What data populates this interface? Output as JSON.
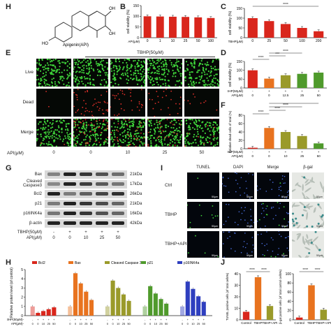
{
  "panels": {
    "H_top": "H",
    "B": "B",
    "C": "C",
    "E": "E",
    "D": "D",
    "F": "F",
    "G": "G",
    "I": "I",
    "H": "H",
    "J": "J"
  },
  "panel_a": {
    "compound": "Apigenin(API)",
    "oh": "OH",
    "ho": "HO"
  },
  "tbhp_label": "TBHP(50μM)",
  "panel_e": {
    "rows": [
      "Live",
      "Dead",
      "Merge"
    ],
    "api_label": "API(μM)",
    "api_doses": [
      "0",
      "0",
      "10",
      "25",
      "50"
    ]
  },
  "panel_g": {
    "proteins": [
      "Bax",
      "Cleaved\nCaspase3",
      "Bcl2",
      "p21",
      "p16INK4a",
      "β-actin"
    ],
    "kda": [
      "21kDa",
      "17kDa",
      "26kDa",
      "21kDa",
      "16kDa",
      "42kDa"
    ],
    "tbhp_row": "TBHP(50μM)",
    "api_row": "API(μM)",
    "tbhp_vals": [
      "-",
      "+",
      "+",
      "+",
      "+"
    ],
    "api_vals": [
      "0",
      "0",
      "10",
      "25",
      "50"
    ]
  },
  "panel_i": {
    "cols": [
      "TUNEL",
      "DAPI",
      "Merge",
      "β-gal"
    ],
    "rows": [
      "Ctrl",
      "TBHP",
      "TBHP+API"
    ],
    "scale": "50μm"
  },
  "colors": {
    "red": "#d9261c",
    "orange": "#e8731f",
    "green": "#4f9a2c",
    "olive": "#9a9a2a",
    "blue": "#2f3fbf",
    "grey": "#5a5a5a",
    "sig": "#2a7db8"
  },
  "chart_data": [
    {
      "id": "B",
      "type": "bar",
      "categories": [
        "0",
        "1",
        "10",
        "25",
        "50",
        "100"
      ],
      "values": [
        100,
        99,
        98,
        97,
        95,
        92
      ],
      "xlabel": "API(μM)",
      "ylabel": "cell viability (%)",
      "ylim": [
        0,
        150
      ],
      "yticks": [
        "0",
        "50",
        "100",
        "150"
      ]
    },
    {
      "id": "C",
      "type": "bar",
      "categories": [
        "0",
        "25",
        "50",
        "100",
        "200"
      ],
      "values": [
        100,
        85,
        70,
        50,
        33
      ],
      "xlabel": "TBHP(μM)",
      "ylabel": "cell viability (%)",
      "ylim": [
        0,
        150
      ],
      "yticks": [
        "0",
        "50",
        "100",
        "150"
      ],
      "sig": "****"
    },
    {
      "id": "D",
      "type": "bar",
      "categories": [
        "0",
        "0",
        "12.5",
        "25",
        "50"
      ],
      "values": [
        100,
        53,
        72,
        80,
        87
      ],
      "xlabel": "TBHP(50μM)",
      "ylabel": "cell viability (%)",
      "ylim": [
        0,
        150
      ],
      "yticks": [
        "0",
        "50",
        "100",
        "150"
      ],
      "tbhp": [
        "-",
        "+",
        "+",
        "+",
        "+"
      ],
      "api": [
        "0",
        "0",
        "12.5",
        "25",
        "50"
      ],
      "sig": [
        "****",
        "***",
        "****",
        "****"
      ]
    },
    {
      "id": "F",
      "type": "bar",
      "categories": [
        "0",
        "0",
        "10",
        "25",
        "50"
      ],
      "values": [
        3,
        62,
        50,
        38,
        16
      ],
      "xlabel": "TBHP(50μM)",
      "ylabel": "Relative dead cells of total (%)",
      "ylim": [
        0,
        100
      ],
      "yticks": [
        "0",
        "20",
        "40",
        "60",
        "80"
      ],
      "tbhp": [
        "-",
        "+",
        "+",
        "+",
        "+"
      ],
      "api": [
        "0",
        "0",
        "10",
        "25",
        "50"
      ],
      "sig": [
        "****",
        "****",
        "****",
        "****"
      ]
    },
    {
      "id": "H",
      "type": "bar",
      "ylabel": "Relative protein level (of control)",
      "ylim": [
        0,
        5
      ],
      "yticks": [
        "0",
        "1",
        "2",
        "3",
        "4",
        "5"
      ],
      "series": [
        {
          "name": "Bcl2",
          "values": [
            1.0,
            0.3,
            0.5,
            0.7,
            0.9
          ]
        },
        {
          "name": "Bax",
          "values": [
            1.0,
            4.6,
            3.5,
            2.6,
            1.7
          ]
        },
        {
          "name": "Cleaved Caspase 3",
          "values": [
            1.0,
            3.8,
            3.0,
            2.3,
            1.6
          ]
        },
        {
          "name": "p21",
          "values": [
            1.0,
            3.2,
            2.4,
            1.8,
            1.3
          ]
        },
        {
          "name": "p16INK4a",
          "values": [
            1.0,
            3.7,
            2.9,
            2.1,
            1.5
          ]
        }
      ],
      "tbhp_row": "TBHP(50μM)-",
      "api_row": "API(μM)-",
      "tbhp": [
        "-",
        "+",
        "+",
        "+",
        "+"
      ],
      "api": [
        "0",
        "0",
        "10",
        "25",
        "50"
      ]
    },
    {
      "id": "J1",
      "type": "bar",
      "categories": [
        "Control",
        "TBHP",
        "TBHP+API"
      ],
      "values": [
        7,
        37,
        12
      ],
      "ylabel": "TUNEL positive cells (of total cells%)",
      "ylim": [
        0,
        40
      ],
      "yticks": [
        "0",
        "10",
        "20",
        "30",
        "40"
      ],
      "sig": [
        "****",
        "****"
      ]
    },
    {
      "id": "J2",
      "type": "bar",
      "categories": [
        "Control",
        "TBHP",
        "TBHP+API"
      ],
      "values": [
        5,
        75,
        22
      ],
      "ylabel": "β-gal positive cells (of total control cells%)",
      "ylim": [
        0,
        100
      ],
      "yticks": [
        "0",
        "20",
        "40",
        "60",
        "80",
        "100"
      ],
      "sig": [
        "****",
        "****"
      ]
    }
  ]
}
